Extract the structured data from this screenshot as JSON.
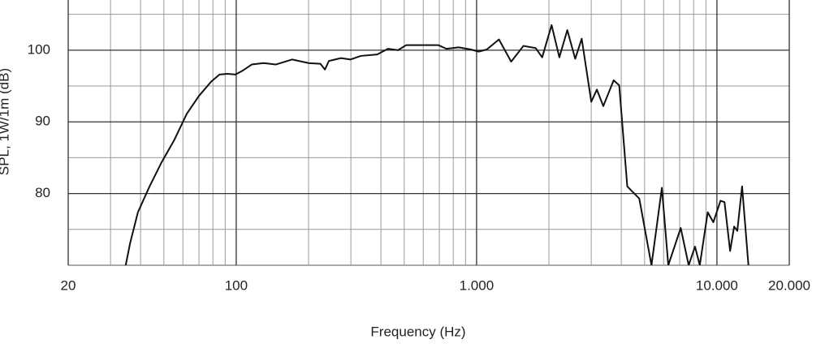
{
  "chart_data": {
    "type": "line",
    "xlabel": "Frequency (Hz)",
    "ylabel": "SPL, 1W/1m (dB)",
    "xscale": "log",
    "grid": true,
    "color": "#111111",
    "xlim": [
      20,
      20000
    ],
    "ylim": [
      70,
      107
    ],
    "xticks": [
      20,
      100,
      {
        "value": 1000,
        "label": "1.000"
      },
      {
        "value": 10000,
        "label": "10.000"
      },
      {
        "value": 20000,
        "label": "20.000"
      }
    ],
    "xminorticks": [
      30,
      40,
      50,
      60,
      70,
      80,
      90,
      200,
      300,
      400,
      500,
      600,
      700,
      800,
      900,
      2000,
      3000,
      4000,
      5000,
      6000,
      7000,
      8000,
      9000
    ],
    "yticks": [
      80,
      90,
      100
    ],
    "yminorticks": [
      75,
      85,
      95,
      105
    ],
    "x": [
      34.7,
      36.2,
      39,
      43.6,
      49,
      55.3,
      62.2,
      69.9,
      78.6,
      85.2,
      91.9,
      99.3,
      107,
      116,
      130,
      146,
      171,
      200,
      224,
      234,
      243,
      273,
      299,
      330,
      386,
      428,
      471,
      509,
      594,
      694,
      749,
      843,
      946,
      1021,
      1103,
      1239,
      1393,
      1567,
      1761,
      1875,
      2052,
      2210,
      2385,
      2573,
      2738,
      3001,
      3166,
      3367,
      3718,
      3922,
      4237,
      4753,
      5342,
      5902,
      6276,
      7070,
      7629,
      8106,
      8486,
      9157,
      9664,
      10350,
      10755,
      11346,
      11793,
      12156,
      12728,
      13524
    ],
    "values": [
      70,
      73.1,
      77.4,
      81,
      84.4,
      87.5,
      91.1,
      93.6,
      95.6,
      96.6,
      96.7,
      96.6,
      97.2,
      98,
      98.2,
      98,
      98.7,
      98.2,
      98.1,
      97.3,
      98.5,
      98.9,
      98.7,
      99.2,
      99.4,
      100.2,
      100,
      100.7,
      100.7,
      100.7,
      100.2,
      100.4,
      100.1,
      99.8,
      100.1,
      101.5,
      98.4,
      100.6,
      100.3,
      99,
      103.5,
      99,
      102.8,
      98.8,
      101.6,
      92.8,
      94.5,
      92.2,
      95.8,
      95.1,
      81,
      79.3,
      70,
      80.8,
      70,
      75.2,
      70,
      72.6,
      70,
      77.4,
      76,
      79,
      78.8,
      72,
      75.4,
      74.8,
      81,
      70
    ]
  }
}
